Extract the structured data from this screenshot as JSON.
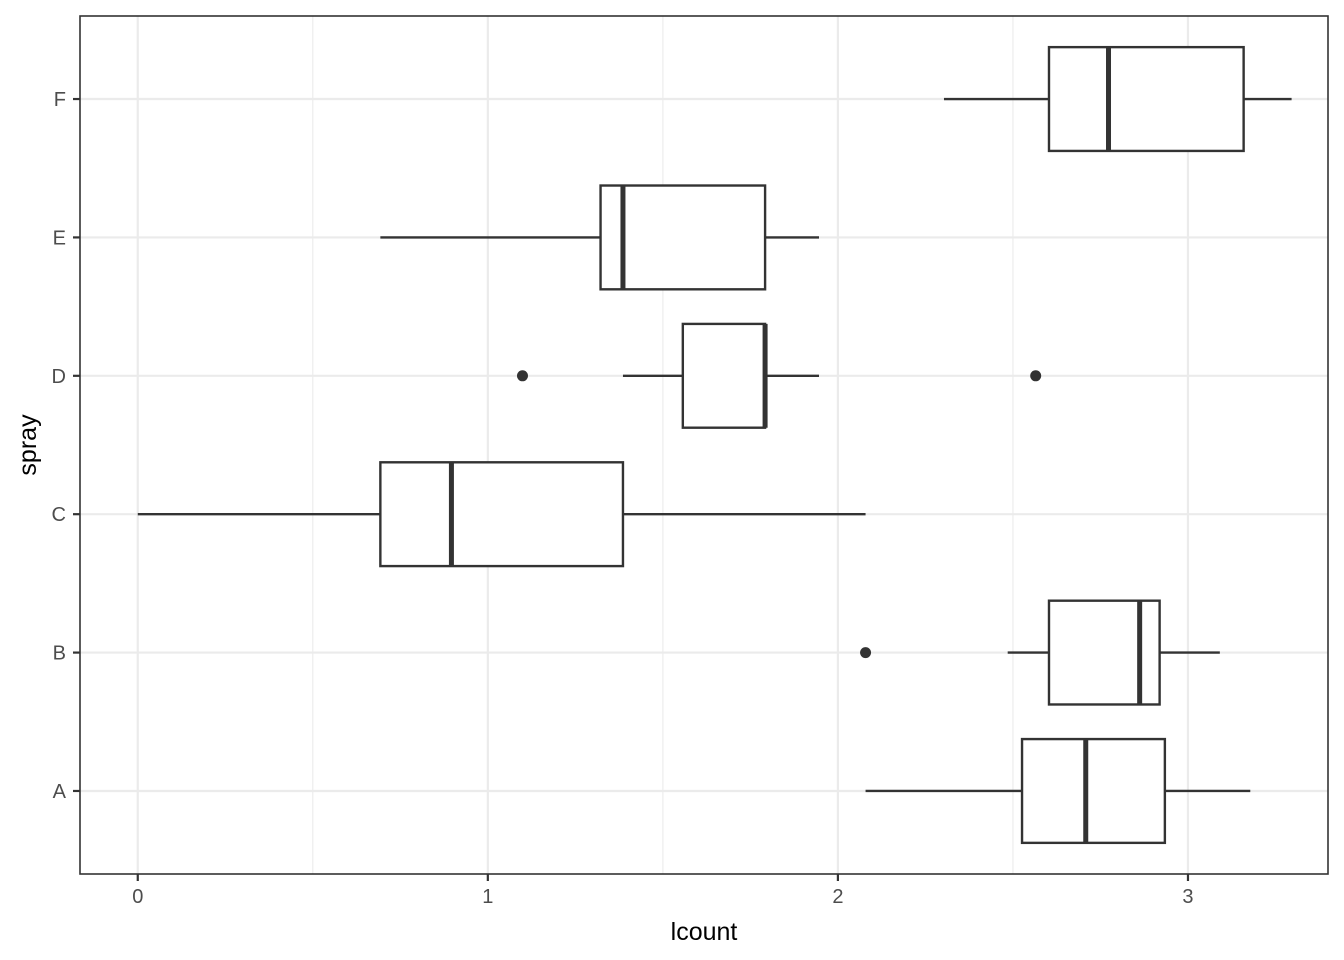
{
  "chart_data": {
    "type": "boxplot",
    "orientation": "horizontal",
    "title": "",
    "xlabel": "lcount",
    "ylabel": "spray",
    "xlim": [
      -0.165,
      3.4
    ],
    "x_ticks": [
      0,
      1,
      2,
      3
    ],
    "x_tick_labels": [
      "0",
      "1",
      "2",
      "3"
    ],
    "categories": [
      "A",
      "B",
      "C",
      "D",
      "E",
      "F"
    ],
    "grid": true,
    "theme": "bw",
    "boxes": [
      {
        "category": "A",
        "whisker_low": 2.079,
        "q1": 2.526,
        "median": 2.708,
        "q3": 2.934,
        "whisker_high": 3.178,
        "outliers": []
      },
      {
        "category": "B",
        "whisker_low": 2.485,
        "q1": 2.603,
        "median": 2.862,
        "q3": 2.919,
        "whisker_high": 3.091,
        "outliers": [
          2.079
        ]
      },
      {
        "category": "C",
        "whisker_low": 0.0,
        "q1": 0.693,
        "median": 0.896,
        "q3": 1.386,
        "whisker_high": 2.079,
        "outliers": []
      },
      {
        "category": "D",
        "whisker_low": 1.386,
        "q1": 1.557,
        "median": 1.792,
        "q3": 1.792,
        "whisker_high": 1.946,
        "outliers": [
          1.099,
          2.565
        ]
      },
      {
        "category": "E",
        "whisker_low": 0.693,
        "q1": 1.322,
        "median": 1.386,
        "q3": 1.792,
        "whisker_high": 1.946,
        "outliers": []
      },
      {
        "category": "F",
        "whisker_low": 2.303,
        "q1": 2.603,
        "median": 2.773,
        "q3": 3.159,
        "whisker_high": 3.296,
        "outliers": []
      }
    ]
  }
}
